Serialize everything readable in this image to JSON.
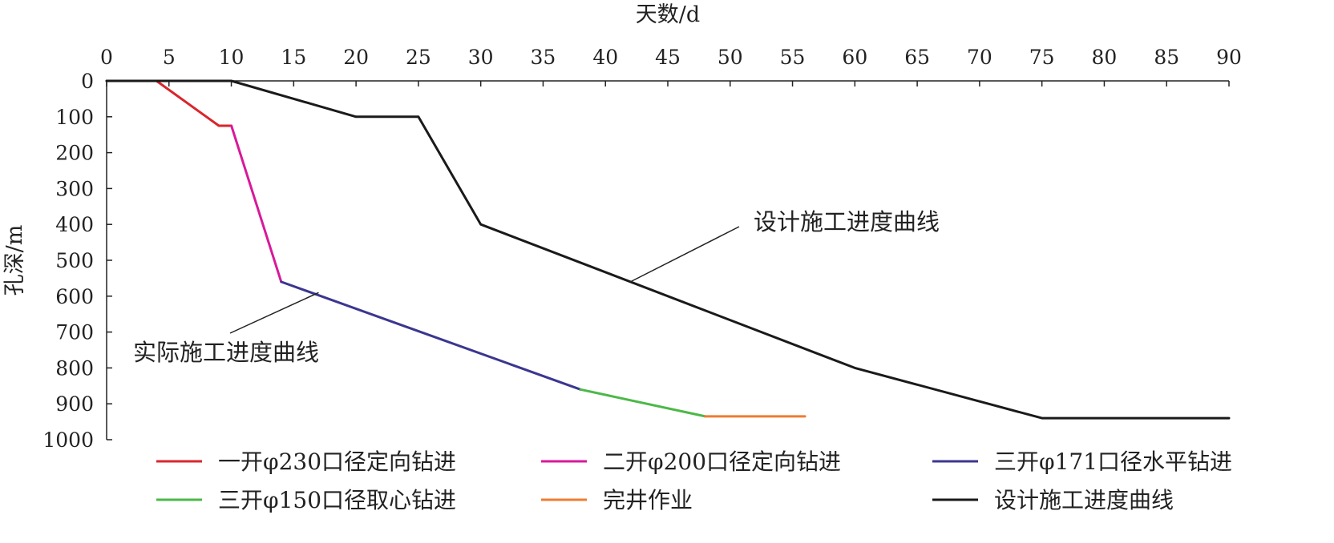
{
  "chart_data": {
    "type": "line",
    "xlabel": "天数/d",
    "ylabel": "孔深/m",
    "xlim": [
      0,
      90
    ],
    "ylim": [
      0,
      1000
    ],
    "y_inverted": true,
    "x_axis_position": "top",
    "grid": false,
    "x_ticks": [
      0,
      5,
      10,
      15,
      20,
      25,
      30,
      35,
      40,
      45,
      50,
      55,
      60,
      65,
      70,
      75,
      80,
      85,
      90
    ],
    "y_ticks": [
      0,
      100,
      200,
      300,
      400,
      500,
      600,
      700,
      800,
      900,
      1000
    ],
    "legend_position": "bottom",
    "series": [
      {
        "name": "一开φ230口径定向钻进",
        "color": "#d9262c",
        "points": [
          [
            0,
            0
          ],
          [
            4,
            0
          ],
          [
            9,
            125
          ],
          [
            10,
            125
          ]
        ]
      },
      {
        "name": "二开φ200口径定向钻进",
        "color": "#d8199a",
        "points": [
          [
            10,
            125
          ],
          [
            14,
            560
          ]
        ]
      },
      {
        "name": "三开φ171口径水平钻进",
        "color": "#3b3690",
        "points": [
          [
            14,
            560
          ],
          [
            38,
            860
          ]
        ]
      },
      {
        "name": "三开φ150口径取心钻进",
        "color": "#4cb848",
        "points": [
          [
            38,
            860
          ],
          [
            48,
            935
          ]
        ]
      },
      {
        "name": "完井作业",
        "color": "#ed7d31",
        "points": [
          [
            48,
            935
          ],
          [
            56,
            935
          ]
        ]
      },
      {
        "name": "设计施工进度曲线",
        "color": "#1a1a1a",
        "points": [
          [
            0,
            0
          ],
          [
            10,
            0
          ],
          [
            20,
            100
          ],
          [
            25,
            100
          ],
          [
            30,
            400
          ],
          [
            60,
            800
          ],
          [
            75,
            940
          ],
          [
            90,
            940
          ]
        ]
      }
    ],
    "annotations": [
      {
        "text": "设计施工进度曲线",
        "target": [
          42,
          560
        ]
      },
      {
        "text": "实际施工进度曲线",
        "target": [
          17,
          590
        ]
      }
    ]
  }
}
